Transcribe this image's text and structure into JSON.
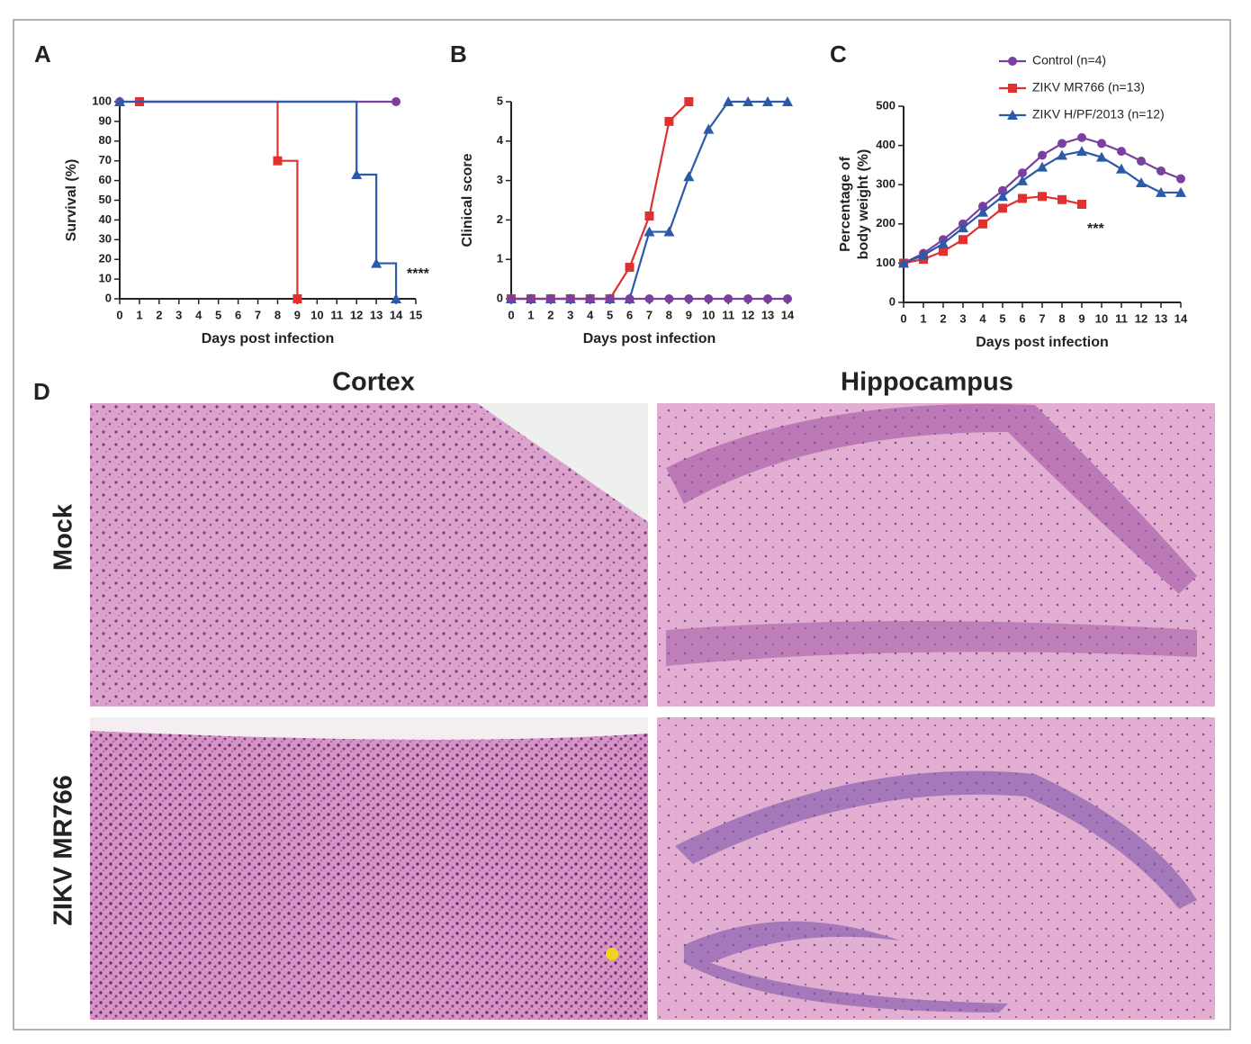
{
  "chart_data": [
    {
      "type": "step",
      "panel_label": "A",
      "xlabel": "Days post infection",
      "ylabel": "Survival (%)",
      "xlim": [
        0,
        15
      ],
      "xticks": [
        0,
        1,
        2,
        3,
        4,
        5,
        6,
        7,
        8,
        9,
        10,
        11,
        12,
        13,
        14,
        15
      ],
      "ylim": [
        0,
        100
      ],
      "yticks": [
        0,
        10,
        20,
        30,
        40,
        50,
        60,
        70,
        80,
        90,
        100
      ],
      "annotation": "****",
      "series": [
        {
          "color": "#7b3fa0",
          "marker": "circle",
          "x": [
            0,
            14
          ],
          "values": [
            100,
            100
          ]
        },
        {
          "color": "#e03030",
          "marker": "square",
          "x": [
            1,
            8,
            9
          ],
          "values": [
            100,
            70,
            0
          ]
        },
        {
          "color": "#2a5aa8",
          "marker": "triangle",
          "x": [
            0,
            12,
            13,
            14
          ],
          "values": [
            100,
            63,
            18,
            0
          ]
        }
      ]
    },
    {
      "type": "line",
      "panel_label": "B",
      "xlabel": "Days post infection",
      "ylabel": "Clinical score",
      "xlim": [
        0,
        14
      ],
      "xticks": [
        0,
        1,
        2,
        3,
        4,
        5,
        6,
        7,
        8,
        9,
        10,
        11,
        12,
        13,
        14
      ],
      "ylim": [
        0,
        5
      ],
      "yticks": [
        0,
        1,
        2,
        3,
        4,
        5
      ],
      "series": [
        {
          "color": "#e03030",
          "marker": "square",
          "x": [
            0,
            1,
            2,
            3,
            4,
            5,
            6,
            7,
            8,
            9
          ],
          "values": [
            0,
            0,
            0,
            0,
            0,
            0,
            0.8,
            2.1,
            4.5,
            5
          ]
        },
        {
          "color": "#2a5aa8",
          "marker": "triangle",
          "x": [
            0,
            1,
            2,
            3,
            4,
            5,
            6,
            7,
            8,
            9,
            10,
            11,
            12,
            13,
            14
          ],
          "values": [
            0,
            0,
            0,
            0,
            0,
            0,
            0,
            1.7,
            1.7,
            3.1,
            4.3,
            5,
            5,
            5,
            5
          ]
        },
        {
          "color": "#7b3fa0",
          "marker": "circle",
          "x": [
            0,
            1,
            2,
            3,
            4,
            5,
            6,
            7,
            8,
            9,
            10,
            11,
            12,
            13,
            14
          ],
          "values": [
            0,
            0,
            0,
            0,
            0,
            0,
            0,
            0,
            0,
            0,
            0,
            0,
            0,
            0,
            0
          ]
        }
      ]
    },
    {
      "type": "line",
      "panel_label": "C",
      "xlabel": "Days post infection",
      "ylabel": [
        "Percentage of",
        "body weight (%)"
      ],
      "xlim": [
        0,
        14
      ],
      "xticks": [
        0,
        1,
        2,
        3,
        4,
        5,
        6,
        7,
        8,
        9,
        10,
        11,
        12,
        13,
        14
      ],
      "ylim": [
        0,
        500
      ],
      "yticks": [
        0,
        100,
        200,
        300,
        400,
        500
      ],
      "annotation": "***",
      "series": [
        {
          "name": "Control (n=4)",
          "color": "#7b3fa0",
          "marker": "circle",
          "x": [
            0,
            1,
            2,
            3,
            4,
            5,
            6,
            7,
            8,
            9,
            10,
            11,
            12,
            13,
            14
          ],
          "values": [
            100,
            125,
            160,
            200,
            245,
            285,
            330,
            375,
            405,
            420,
            405,
            385,
            360,
            335,
            315
          ]
        },
        {
          "name": "ZIKV MR766 (n=13)",
          "color": "#e03030",
          "marker": "square",
          "x": [
            0,
            1,
            2,
            3,
            4,
            5,
            6,
            7,
            8,
            9
          ],
          "values": [
            100,
            110,
            130,
            160,
            200,
            240,
            265,
            270,
            262,
            250
          ]
        },
        {
          "name": "ZIKV H/PF/2013 (n=12)",
          "color": "#2a5aa8",
          "marker": "triangle",
          "x": [
            0,
            1,
            2,
            3,
            4,
            5,
            6,
            7,
            8,
            9,
            10,
            11,
            12,
            13,
            14
          ],
          "values": [
            100,
            120,
            150,
            190,
            230,
            270,
            310,
            345,
            375,
            385,
            370,
            340,
            305,
            280,
            280
          ]
        }
      ]
    }
  ],
  "panel_d": {
    "label": "D",
    "columns": [
      "Cortex",
      "Hippocampus"
    ],
    "rows": [
      "Mock",
      "ZIKV MR766"
    ]
  }
}
